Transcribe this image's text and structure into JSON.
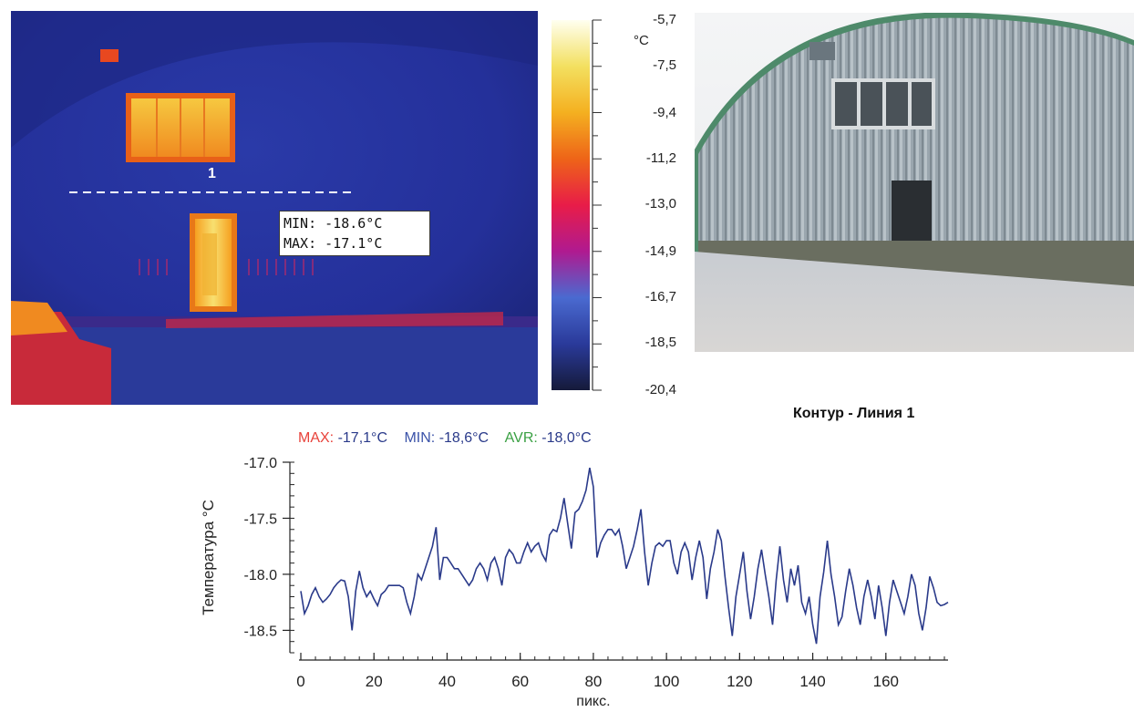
{
  "thermal": {
    "profile_label": "1",
    "readout_min": "MIN:  -18.6°C",
    "readout_max": "MAX:  -17.1°C"
  },
  "scale": {
    "unit": "°C",
    "labels": [
      "-5,7",
      "-7,5",
      "-9,4",
      "-11,2",
      "-13,0",
      "-14,9",
      "-16,7",
      "-18,5",
      "-20,4"
    ],
    "values": [
      -5.7,
      -7.5,
      -9.4,
      -11.2,
      -13.0,
      -14.9,
      -16.7,
      -18.5,
      -20.4
    ],
    "colors": [
      "#fffff0",
      "#f3e060",
      "#f4b020",
      "#ee6418",
      "#e81c48",
      "#b01a90",
      "#4a6ad0",
      "#2a3a9a",
      "#151a3a"
    ]
  },
  "chart_data": {
    "type": "line",
    "title": "Контур - Линия 1",
    "xlabel": "пикс.",
    "ylabel": "Температура °C",
    "xlim": [
      0,
      177
    ],
    "ylim": [
      -18.7,
      -17.0
    ],
    "xticks": [
      0,
      20,
      40,
      60,
      80,
      100,
      120,
      140,
      160
    ],
    "xtick_labels": [
      "0",
      "20",
      "40",
      "60",
      "80",
      "100",
      "120",
      "140",
      "160"
    ],
    "yticks": [
      -17.0,
      -17.5,
      -18.0,
      -18.5
    ],
    "ytick_labels": [
      "-17.0",
      "-17.5",
      "-18.0",
      "-18.5"
    ],
    "stats": {
      "max_key": "MAX:",
      "max_val": "-17,1°C",
      "min_key": "MIN:",
      "min_val": "-18,6°C",
      "avr_key": "AVR:",
      "avr_val": "-18,0°C"
    },
    "series": [
      {
        "color": "#2a3a8a",
        "points": [
          [
            0,
            -18.15
          ],
          [
            1,
            -18.35
          ],
          [
            2,
            -18.28
          ],
          [
            3,
            -18.18
          ],
          [
            4,
            -18.12
          ],
          [
            5,
            -18.2
          ],
          [
            6,
            -18.25
          ],
          [
            7,
            -18.22
          ],
          [
            8,
            -18.18
          ],
          [
            9,
            -18.12
          ],
          [
            10,
            -18.08
          ],
          [
            11,
            -18.05
          ],
          [
            12,
            -18.06
          ],
          [
            13,
            -18.2
          ],
          [
            14,
            -18.5
          ],
          [
            15,
            -18.15
          ],
          [
            16,
            -17.97
          ],
          [
            17,
            -18.12
          ],
          [
            18,
            -18.2
          ],
          [
            19,
            -18.15
          ],
          [
            20,
            -18.22
          ],
          [
            21,
            -18.28
          ],
          [
            22,
            -18.18
          ],
          [
            23,
            -18.15
          ],
          [
            24,
            -18.1
          ],
          [
            25,
            -18.1
          ],
          [
            26,
            -18.1
          ],
          [
            27,
            -18.1
          ],
          [
            28,
            -18.12
          ],
          [
            29,
            -18.25
          ],
          [
            30,
            -18.35
          ],
          [
            31,
            -18.2
          ],
          [
            32,
            -18.0
          ],
          [
            33,
            -18.05
          ],
          [
            34,
            -17.95
          ],
          [
            35,
            -17.85
          ],
          [
            36,
            -17.75
          ],
          [
            37,
            -17.58
          ],
          [
            38,
            -18.05
          ],
          [
            39,
            -17.85
          ],
          [
            40,
            -17.85
          ],
          [
            41,
            -17.9
          ],
          [
            42,
            -17.95
          ],
          [
            43,
            -17.95
          ],
          [
            44,
            -18.0
          ],
          [
            45,
            -18.05
          ],
          [
            46,
            -18.1
          ],
          [
            47,
            -18.05
          ],
          [
            48,
            -17.95
          ],
          [
            49,
            -17.9
          ],
          [
            50,
            -17.95
          ],
          [
            51,
            -18.05
          ],
          [
            52,
            -17.9
          ],
          [
            53,
            -17.85
          ],
          [
            54,
            -17.95
          ],
          [
            55,
            -18.1
          ],
          [
            56,
            -17.85
          ],
          [
            57,
            -17.78
          ],
          [
            58,
            -17.82
          ],
          [
            59,
            -17.9
          ],
          [
            60,
            -17.9
          ],
          [
            61,
            -17.8
          ],
          [
            62,
            -17.72
          ],
          [
            63,
            -17.8
          ],
          [
            64,
            -17.75
          ],
          [
            65,
            -17.72
          ],
          [
            66,
            -17.82
          ],
          [
            67,
            -17.88
          ],
          [
            68,
            -17.65
          ],
          [
            69,
            -17.6
          ],
          [
            70,
            -17.62
          ],
          [
            71,
            -17.5
          ],
          [
            72,
            -17.32
          ],
          [
            73,
            -17.55
          ],
          [
            74,
            -17.77
          ],
          [
            75,
            -17.45
          ],
          [
            76,
            -17.42
          ],
          [
            77,
            -17.35
          ],
          [
            78,
            -17.25
          ],
          [
            79,
            -17.05
          ],
          [
            80,
            -17.22
          ],
          [
            81,
            -17.85
          ],
          [
            82,
            -17.72
          ],
          [
            83,
            -17.65
          ],
          [
            84,
            -17.6
          ],
          [
            85,
            -17.6
          ],
          [
            86,
            -17.65
          ],
          [
            87,
            -17.6
          ],
          [
            88,
            -17.75
          ],
          [
            89,
            -17.95
          ],
          [
            90,
            -17.85
          ],
          [
            91,
            -17.75
          ],
          [
            92,
            -17.6
          ],
          [
            93,
            -17.42
          ],
          [
            94,
            -17.8
          ],
          [
            95,
            -18.1
          ],
          [
            96,
            -17.9
          ],
          [
            97,
            -17.75
          ],
          [
            98,
            -17.72
          ],
          [
            99,
            -17.75
          ],
          [
            100,
            -17.7
          ],
          [
            101,
            -17.7
          ],
          [
            102,
            -17.9
          ],
          [
            103,
            -18.0
          ],
          [
            104,
            -17.8
          ],
          [
            105,
            -17.72
          ],
          [
            106,
            -17.8
          ],
          [
            107,
            -18.05
          ],
          [
            108,
            -17.85
          ],
          [
            109,
            -17.7
          ],
          [
            110,
            -17.85
          ],
          [
            111,
            -18.22
          ],
          [
            112,
            -17.95
          ],
          [
            113,
            -17.8
          ],
          [
            114,
            -17.6
          ],
          [
            115,
            -17.7
          ],
          [
            116,
            -18.02
          ],
          [
            117,
            -18.3
          ],
          [
            118,
            -18.55
          ],
          [
            119,
            -18.2
          ],
          [
            120,
            -18.0
          ],
          [
            121,
            -17.8
          ],
          [
            122,
            -18.15
          ],
          [
            123,
            -18.4
          ],
          [
            124,
            -18.2
          ],
          [
            125,
            -17.95
          ],
          [
            126,
            -17.78
          ],
          [
            127,
            -18.0
          ],
          [
            128,
            -18.2
          ],
          [
            129,
            -18.45
          ],
          [
            130,
            -18.05
          ],
          [
            131,
            -17.75
          ],
          [
            132,
            -18.05
          ],
          [
            133,
            -18.25
          ],
          [
            134,
            -17.95
          ],
          [
            135,
            -18.1
          ],
          [
            136,
            -17.92
          ],
          [
            137,
            -18.25
          ],
          [
            138,
            -18.35
          ],
          [
            139,
            -18.2
          ],
          [
            140,
            -18.45
          ],
          [
            141,
            -18.62
          ],
          [
            142,
            -18.2
          ],
          [
            143,
            -17.98
          ],
          [
            144,
            -17.7
          ],
          [
            145,
            -18.0
          ],
          [
            146,
            -18.2
          ],
          [
            147,
            -18.45
          ],
          [
            148,
            -18.38
          ],
          [
            149,
            -18.15
          ],
          [
            150,
            -17.95
          ],
          [
            151,
            -18.1
          ],
          [
            152,
            -18.3
          ],
          [
            153,
            -18.45
          ],
          [
            154,
            -18.2
          ],
          [
            155,
            -18.05
          ],
          [
            156,
            -18.2
          ],
          [
            157,
            -18.4
          ],
          [
            158,
            -18.1
          ],
          [
            159,
            -18.3
          ],
          [
            160,
            -18.55
          ],
          [
            161,
            -18.25
          ],
          [
            162,
            -18.05
          ],
          [
            163,
            -18.15
          ],
          [
            164,
            -18.25
          ],
          [
            165,
            -18.35
          ],
          [
            166,
            -18.2
          ],
          [
            167,
            -18.0
          ],
          [
            168,
            -18.1
          ],
          [
            169,
            -18.35
          ],
          [
            170,
            -18.5
          ],
          [
            171,
            -18.3
          ],
          [
            172,
            -18.02
          ],
          [
            173,
            -18.12
          ],
          [
            174,
            -18.25
          ],
          [
            175,
            -18.28
          ],
          [
            176,
            -18.27
          ],
          [
            177,
            -18.25
          ]
        ]
      }
    ]
  }
}
